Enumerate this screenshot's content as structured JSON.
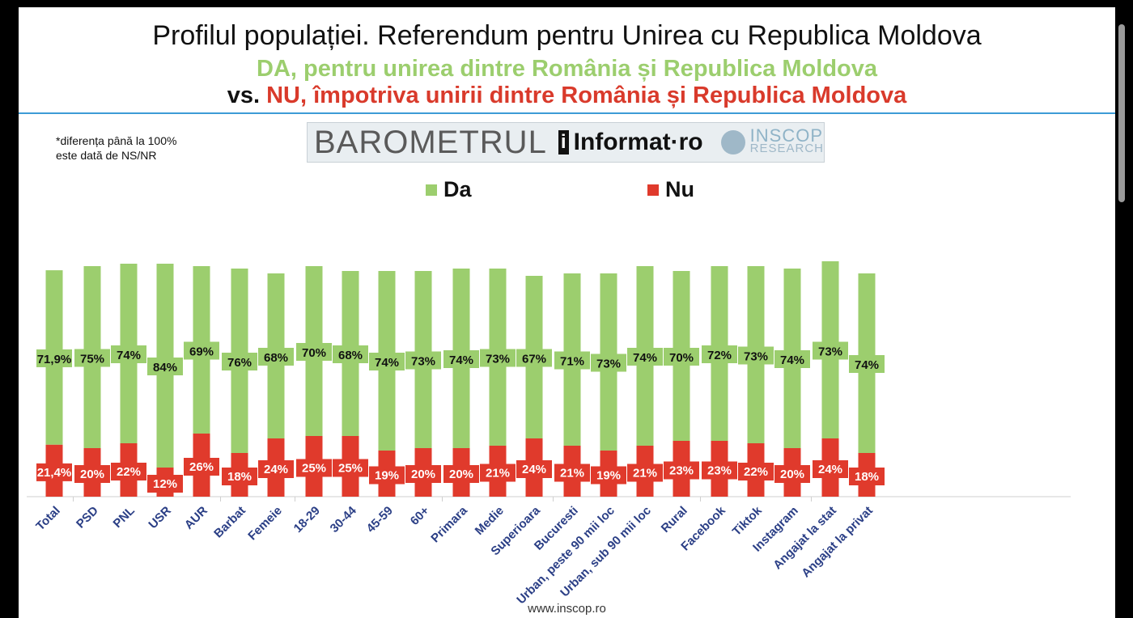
{
  "header": {
    "title": "Profilul populației. Referendum pentru Unirea cu Republica Moldova",
    "subtitle_da": "DA, pentru unirea dintre România și Republica Moldova",
    "subtitle_vs": "vs.",
    "subtitle_nu": "NU, împotriva unirii dintre România și Republica Moldova"
  },
  "note": "*diferența până la 100%\neste dată de NS/NR",
  "banner": {
    "barometrul": "BAROMETRUL",
    "informat_mark": "i",
    "informat": "Informat·ro",
    "inscop": "INSCOP",
    "research": "RESEARCH"
  },
  "footer": "www.inscop.ro",
  "colors": {
    "da": "#9cce6e",
    "nu": "#e03a2c",
    "axis_label": "#2b3f86"
  },
  "chart_data": {
    "type": "bar",
    "legend": [
      {
        "name": "Da",
        "color": "#9cce6e"
      },
      {
        "name": "Nu",
        "color": "#e03a2c"
      }
    ],
    "legend_position": "top",
    "categories": [
      "Total",
      "PSD",
      "PNL",
      "USR",
      "AUR",
      "Barbat",
      "Femeie",
      "18-29",
      "30-44",
      "45-59",
      "60+",
      "Primara",
      "Medie",
      "Superioara",
      "Bucuresti",
      "Urban, peste 90 mii loc",
      "Urban, sub 90 mii loc",
      "Rural",
      "Facebook",
      "Tiktok",
      "Instagram",
      "Angajat la stat",
      "Angajat la privat"
    ],
    "groups": [
      [
        0
      ],
      [
        1,
        2,
        3,
        4
      ],
      [
        5,
        6
      ],
      [
        7,
        8,
        9,
        10
      ],
      [
        11,
        12,
        13
      ],
      [
        14,
        15,
        16,
        17
      ],
      [
        18,
        19,
        20
      ],
      [
        21,
        22
      ]
    ],
    "series": [
      {
        "name": "Da",
        "values": [
          71.9,
          75,
          74,
          84,
          69,
          76,
          68,
          70,
          68,
          74,
          73,
          74,
          73,
          67,
          71,
          73,
          74,
          70,
          72,
          73,
          74,
          73,
          74
        ],
        "labels": [
          "71,9%",
          "75%",
          "74%",
          "84%",
          "69%",
          "76%",
          "68%",
          "70%",
          "68%",
          "74%",
          "73%",
          "74%",
          "73%",
          "67%",
          "71%",
          "73%",
          "74%",
          "70%",
          "72%",
          "73%",
          "74%",
          "73%",
          "74%"
        ]
      },
      {
        "name": "Nu",
        "values": [
          21.4,
          20,
          22,
          12,
          26,
          18,
          24,
          25,
          25,
          19,
          20,
          20,
          21,
          24,
          21,
          19,
          21,
          23,
          23,
          22,
          20,
          24,
          18
        ],
        "labels": [
          "21,4%",
          "20%",
          "22%",
          "12%",
          "26%",
          "18%",
          "24%",
          "25%",
          "25%",
          "19%",
          "20%",
          "20%",
          "21%",
          "24%",
          "21%",
          "19%",
          "21%",
          "23%",
          "23%",
          "22%",
          "20%",
          "24%",
          "18%"
        ]
      }
    ],
    "stacked": true,
    "ylim": [
      0,
      100
    ],
    "grid": false
  }
}
